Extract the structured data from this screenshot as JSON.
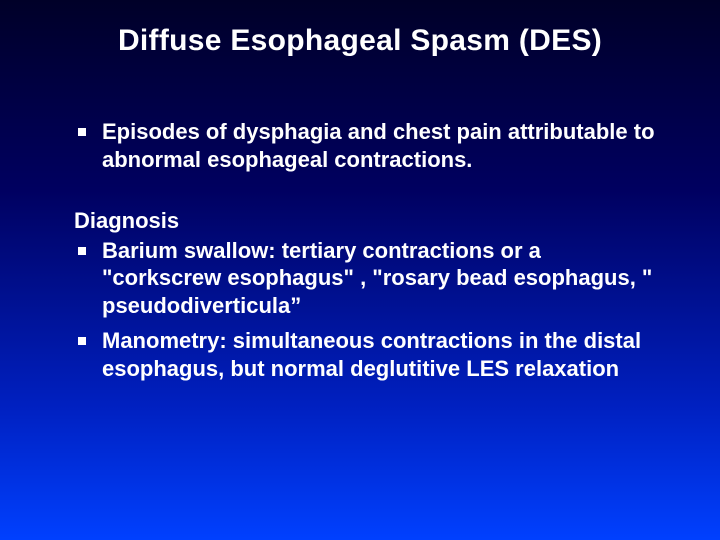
{
  "slide": {
    "title": "Diffuse Esophageal Spasm (DES)",
    "intro_bullets": [
      "Episodes of dysphagia and chest pain attributable to abnormal esophageal contractions."
    ],
    "diagnosis_heading": "Diagnosis",
    "diagnosis_bullets": [
      "Barium swallow: tertiary contractions or a \"corkscrew esophagus\" , \"rosary bead esophagus, \" pseudodiverticula”",
      "Manometry: simultaneous contractions in the distal esophagus, but  normal deglutitive LES relaxation"
    ],
    "colors": {
      "text": "#ffffff",
      "bg_top": "#000028",
      "bg_bottom": "#0040ff"
    },
    "typography": {
      "title_fontsize": 30,
      "body_fontsize": 22,
      "font_family": "Arial",
      "font_weight": "bold"
    }
  }
}
